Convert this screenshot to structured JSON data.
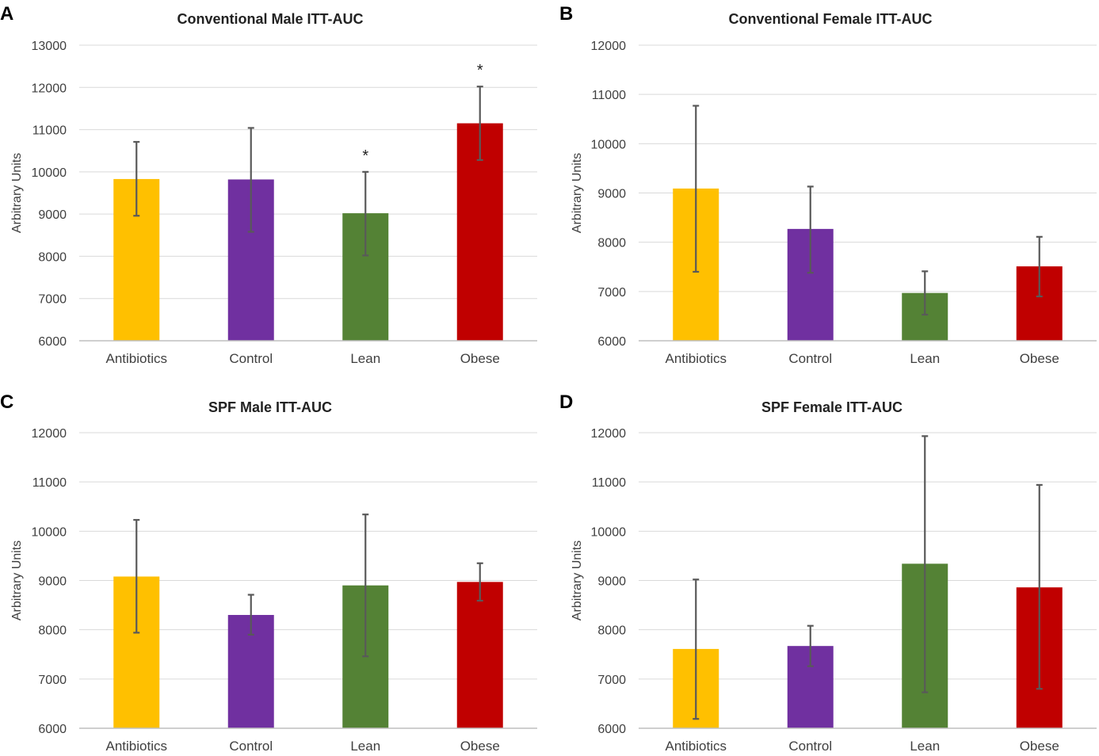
{
  "colors": {
    "Antibiotics": "#FFC000",
    "Control": "#7030A0",
    "Lean": "#548235",
    "Obese": "#C00000"
  },
  "chart_data": [
    {
      "id": "A",
      "type": "bar",
      "letter": "A",
      "title": "Conventional Male ITT-AUC",
      "ylabel": "Arbitrary Units",
      "xlabel": "",
      "ylim": [
        6000,
        13000
      ],
      "yticks": [
        6000,
        7000,
        8000,
        9000,
        10000,
        11000,
        12000,
        13000
      ],
      "ytick_labels": [
        "6000",
        "7000",
        "8000",
        "9000",
        "10000",
        "11000",
        "12000",
        "13000"
      ],
      "grid": true,
      "categories": [
        "Antibiotics",
        "Control",
        "Lean",
        "Obese"
      ],
      "values": [
        9830,
        9820,
        9020,
        11150
      ],
      "error_low": [
        8960,
        8580,
        8020,
        10280
      ],
      "error_high": [
        10710,
        11040,
        10000,
        12020
      ],
      "annotations": [
        "",
        "",
        "*",
        "*"
      ]
    },
    {
      "id": "B",
      "type": "bar",
      "letter": "B",
      "title": "Conventional Female ITT-AUC",
      "ylabel": "Arbitrary Units",
      "xlabel": "",
      "ylim": [
        6000,
        12000
      ],
      "yticks": [
        6000,
        7000,
        8000,
        9000,
        10000,
        11000,
        12000
      ],
      "ytick_labels": [
        "6000",
        "7000",
        "8000",
        "9000",
        "10000",
        "11000",
        "12000"
      ],
      "grid": true,
      "categories": [
        "Antibiotics",
        "Control",
        "Lean",
        "Obese"
      ],
      "values": [
        9090,
        8270,
        6970,
        7510
      ],
      "error_low": [
        7400,
        7380,
        6530,
        6900
      ],
      "error_high": [
        10770,
        9130,
        7410,
        8110
      ],
      "annotations": [
        "",
        "",
        "",
        ""
      ]
    },
    {
      "id": "C",
      "type": "bar",
      "letter": "C",
      "title": "SPF Male ITT-AUC",
      "ylabel": "Arbitrary Units",
      "xlabel": "",
      "ylim": [
        6000,
        12000
      ],
      "yticks": [
        6000,
        7000,
        8000,
        9000,
        10000,
        11000,
        12000
      ],
      "ytick_labels": [
        "6000",
        "7000",
        "8000",
        "9000",
        "10000",
        "11000",
        "12000"
      ],
      "grid": true,
      "categories": [
        "Antibiotics",
        "Control",
        "Lean",
        "Obese"
      ],
      "values": [
        9080,
        8300,
        8900,
        8970
      ],
      "error_low": [
        7940,
        7900,
        7460,
        8590
      ],
      "error_high": [
        10230,
        8710,
        10340,
        9350
      ],
      "annotations": [
        "",
        "",
        "",
        ""
      ]
    },
    {
      "id": "D",
      "type": "bar",
      "letter": "D",
      "title": "SPF Female ITT-AUC",
      "ylabel": "Arbitrary Units",
      "xlabel": "",
      "ylim": [
        6000,
        12000
      ],
      "yticks": [
        6000,
        7000,
        8000,
        9000,
        10000,
        11000,
        12000
      ],
      "ytick_labels": [
        "6000",
        "7000",
        "8000",
        "9000",
        "10000",
        "11000",
        "12000"
      ],
      "grid": true,
      "categories": [
        "Antibiotics",
        "Control",
        "Lean",
        "Obese"
      ],
      "values": [
        7610,
        7670,
        9340,
        8860
      ],
      "error_low": [
        6190,
        7260,
        6730,
        6800
      ],
      "error_high": [
        9020,
        8080,
        11930,
        10940
      ],
      "annotations": [
        "",
        "",
        "",
        ""
      ]
    }
  ]
}
